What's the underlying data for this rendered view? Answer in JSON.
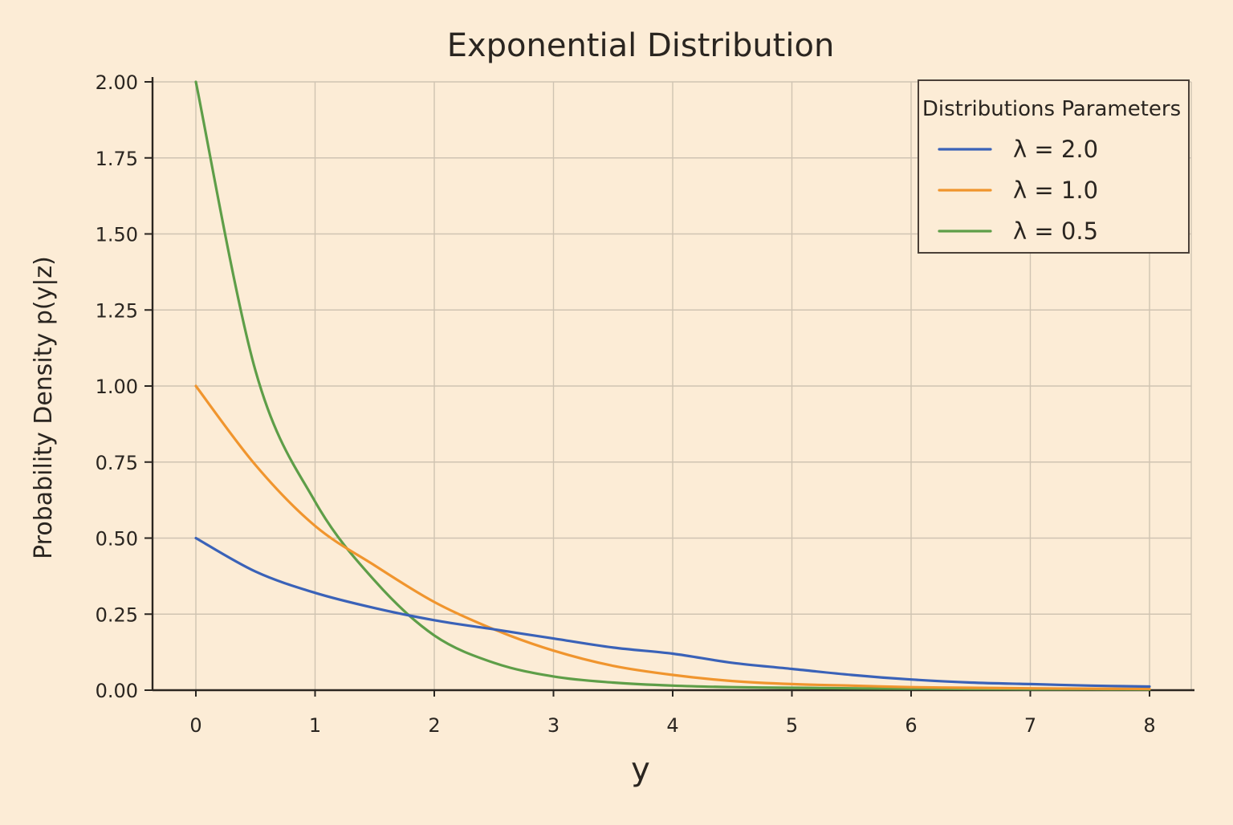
{
  "chart_data": {
    "type": "line",
    "title": "Exponential Distribution",
    "xlabel": "y",
    "ylabel": "Probability Density p(y|z)",
    "xlim": [
      0,
      8
    ],
    "ylim": [
      0,
      2.0
    ],
    "x_ticks": [
      "0",
      "1",
      "2",
      "3",
      "4",
      "5",
      "6",
      "7",
      "8"
    ],
    "y_ticks": [
      "0.00",
      "0.25",
      "0.50",
      "0.75",
      "1.00",
      "1.25",
      "1.50",
      "1.75",
      "2.00"
    ],
    "grid": true,
    "legend": {
      "title": "Distributions Parameters",
      "placement": "top-right"
    },
    "x": [
      0,
      0.5,
      1,
      1.5,
      2,
      2.5,
      3,
      3.5,
      4,
      4.5,
      5,
      5.5,
      6,
      6.5,
      7,
      7.5,
      8
    ],
    "series": [
      {
        "name": "λ = 2.0",
        "color": "#3a62b8",
        "values": [
          0.5,
          0.39,
          0.32,
          0.27,
          0.23,
          0.2,
          0.17,
          0.14,
          0.12,
          0.09,
          0.07,
          0.05,
          0.035,
          0.025,
          0.02,
          0.015,
          0.012
        ]
      },
      {
        "name": "λ = 1.0",
        "color": "#f0952e",
        "values": [
          1.0,
          0.74,
          0.54,
          0.41,
          0.29,
          0.2,
          0.13,
          0.08,
          0.05,
          0.03,
          0.02,
          0.015,
          0.01,
          0.008,
          0.006,
          0.005,
          0.004
        ]
      },
      {
        "name": "λ = 0.5",
        "color": "#5e9e48",
        "values": [
          2.0,
          1.05,
          0.62,
          0.36,
          0.18,
          0.09,
          0.045,
          0.025,
          0.015,
          0.01,
          0.008,
          0.006,
          0.005,
          0.004,
          0.003,
          0.003,
          0.002
        ]
      }
    ]
  }
}
